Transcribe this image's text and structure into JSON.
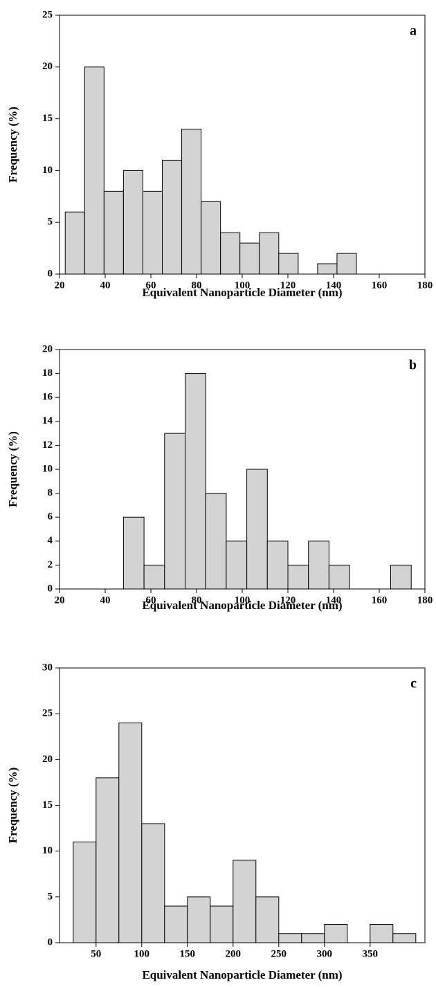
{
  "chart_data": [
    {
      "type": "histogram",
      "annotation": "a",
      "xlabel": "Equivalent Nanoparticle Diameter (nm)",
      "ylabel": "Frequency (%)",
      "bins": [
        22.5,
        31,
        39.5,
        48,
        56.5,
        65,
        73.5,
        82,
        90.5,
        99,
        107.5,
        116,
        124.5,
        133,
        141.5,
        150
      ],
      "counts": [
        6,
        20,
        8,
        10,
        8,
        11,
        14,
        7,
        4,
        3,
        4,
        2,
        0,
        1,
        2
      ],
      "color": "#d3d3d3",
      "xlim": [
        20,
        180
      ],
      "xticks": [
        20,
        40,
        60,
        80,
        100,
        120,
        140,
        160,
        180
      ],
      "ylim": [
        0,
        25
      ],
      "yticks": [
        0,
        5,
        10,
        15,
        20,
        25
      ]
    },
    {
      "type": "histogram",
      "annotation": "b",
      "xlabel": "Equivalent Nanoparticle Diameter (nm)",
      "ylabel": "Frequency (%)",
      "bins": [
        48,
        57,
        66,
        75,
        84,
        93,
        102,
        111,
        120,
        129,
        138,
        147,
        156,
        165,
        174
      ],
      "counts": [
        6,
        2,
        13,
        18,
        8,
        4,
        10,
        4,
        2,
        4,
        2,
        0,
        0,
        2
      ],
      "color": "#d3d3d3",
      "xlim": [
        20,
        180
      ],
      "xticks": [
        20,
        40,
        60,
        80,
        100,
        120,
        140,
        160,
        180
      ],
      "ylim": [
        0,
        20
      ],
      "yticks": [
        0,
        2,
        4,
        6,
        8,
        10,
        12,
        14,
        16,
        18,
        20
      ]
    },
    {
      "type": "histogram",
      "annotation": "c",
      "xlabel": "Equivalent Nanoparticle Diameter (nm)",
      "ylabel": "Frequency (%)",
      "bins": [
        25,
        50,
        75,
        100,
        125,
        150,
        175,
        200,
        225,
        250,
        275,
        300,
        325,
        350,
        375,
        400
      ],
      "counts": [
        11,
        18,
        24,
        13,
        4,
        5,
        4,
        9,
        5,
        1,
        1,
        2,
        0,
        2,
        1
      ],
      "color": "#d3d3d3",
      "xlim": [
        10,
        410
      ],
      "xticks": [
        50,
        100,
        150,
        200,
        250,
        300,
        350
      ],
      "ylim": [
        0,
        30
      ],
      "yticks": [
        0,
        5,
        10,
        15,
        20,
        25,
        30
      ]
    }
  ]
}
